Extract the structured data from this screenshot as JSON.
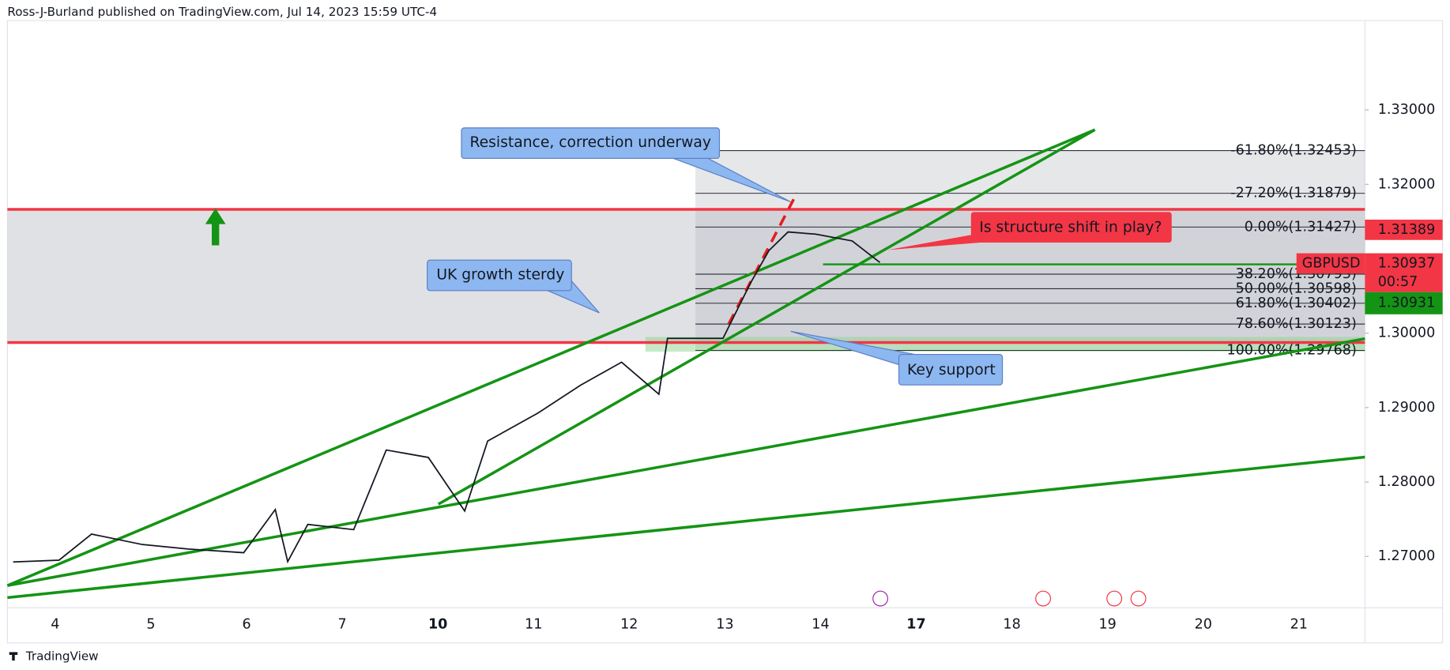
{
  "header": "Ross-J-Burland published on TradingView.com, Jul 14, 2023 15:59 UTC-4",
  "footer": "TradingView",
  "chart_data": {
    "type": "line",
    "symbol": "GBPUSD",
    "categories": [
      "4",
      "5",
      "6",
      "7",
      "10",
      "11",
      "12",
      "13",
      "14",
      "17",
      "18",
      "19",
      "20",
      "21"
    ],
    "xlim": [
      -0.5,
      13.69
    ],
    "ylim": [
      1.2631,
      1.342
    ],
    "yticks": [
      {
        "value": 1.33,
        "label": "1.33000"
      },
      {
        "value": 1.32,
        "label": "1.32000"
      },
      {
        "value": 1.3,
        "label": "1.30000"
      },
      {
        "value": 1.29,
        "label": "1.29000"
      },
      {
        "value": 1.28,
        "label": "1.28000"
      },
      {
        "value": 1.27,
        "label": "1.27000"
      }
    ],
    "price": {
      "color": "#131722",
      "x": [
        -0.44,
        0.04,
        0.38,
        0.91,
        1.39,
        1.97,
        2.3,
        2.43,
        2.64,
        3.12,
        3.46,
        3.9,
        4.28,
        4.52,
        5.05,
        5.49,
        5.92,
        6.31,
        6.4,
        6.98,
        7.27,
        7.46,
        7.66,
        7.95,
        8.33,
        8.62
      ],
      "values": [
        1.26925,
        1.2695,
        1.273,
        1.2716,
        1.271,
        1.2705,
        1.2763,
        1.2693,
        1.2743,
        1.2736,
        1.2843,
        1.2833,
        1.2761,
        1.2855,
        1.2893,
        1.293,
        1.2961,
        1.2918,
        1.2993,
        1.2993,
        1.3068,
        1.3111,
        1.3136,
        1.3133,
        1.3124,
        1.3095
      ]
    },
    "fib_levels": [
      {
        "label": "-61.80%(1.32453)",
        "price": 1.32453
      },
      {
        "label": "-27.20%(1.31879)",
        "price": 1.31879
      },
      {
        "label": "0.00%(1.31427)",
        "price": 1.31427
      },
      {
        "label": "38.20%(1.30793)",
        "price": 1.30793
      },
      {
        "label": "50.00%(1.30598)",
        "price": 1.30598
      },
      {
        "label": "61.80%(1.30402)",
        "price": 1.30402
      },
      {
        "label": "78.60%(1.30123)",
        "price": 1.30123
      },
      {
        "label": "100.00%(1.29768)",
        "price": 1.29768
      }
    ],
    "resistance": 1.31663,
    "support": 1.29875,
    "structure_line": 1.30925,
    "price_labels": {
      "high": {
        "value": 1.31389,
        "label": "1.31389"
      },
      "last": {
        "value": 1.30937,
        "label": "1.30937"
      },
      "countdown": "00:57",
      "low": {
        "value": 1.30931,
        "label": "1.30931"
      }
    },
    "annotations": [
      "Resistance, correction underway",
      "UK growth sterdy",
      "Key support",
      "Is structure shift in play?"
    ]
  }
}
